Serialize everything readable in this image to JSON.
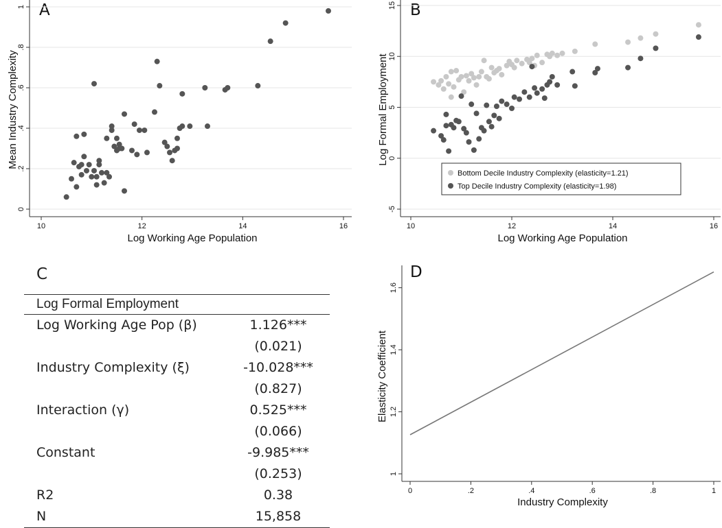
{
  "chart_data": [
    {
      "panel": "A",
      "type": "scatter",
      "xlabel": "Log Working Age Population",
      "ylabel": "Mean Industry Complexity",
      "xlim": [
        10,
        16
      ],
      "ylim": [
        0,
        1
      ],
      "xticks": [
        "10",
        "12",
        "14",
        "16"
      ],
      "yticks": [
        "0",
        ".2",
        ".4",
        ".6",
        ".8",
        "1"
      ],
      "grid": "horizontal",
      "color": "#555555",
      "points": [
        [
          10.5,
          0.06
        ],
        [
          10.6,
          0.15
        ],
        [
          10.65,
          0.23
        ],
        [
          10.7,
          0.11
        ],
        [
          10.7,
          0.36
        ],
        [
          10.75,
          0.21
        ],
        [
          10.8,
          0.17
        ],
        [
          10.8,
          0.22
        ],
        [
          10.85,
          0.37
        ],
        [
          10.85,
          0.26
        ],
        [
          10.9,
          0.19
        ],
        [
          10.95,
          0.22
        ],
        [
          11.0,
          0.16
        ],
        [
          11.05,
          0.19
        ],
        [
          11.05,
          0.62
        ],
        [
          11.1,
          0.16
        ],
        [
          11.1,
          0.12
        ],
        [
          11.15,
          0.24
        ],
        [
          11.15,
          0.22
        ],
        [
          11.2,
          0.18
        ],
        [
          11.25,
          0.13
        ],
        [
          11.3,
          0.18
        ],
        [
          11.35,
          0.16
        ],
        [
          11.3,
          0.35
        ],
        [
          11.4,
          0.41
        ],
        [
          11.4,
          0.39
        ],
        [
          11.45,
          0.31
        ],
        [
          11.5,
          0.29
        ],
        [
          11.55,
          0.3
        ],
        [
          11.5,
          0.35
        ],
        [
          11.55,
          0.32
        ],
        [
          11.6,
          0.3
        ],
        [
          11.65,
          0.47
        ],
        [
          11.65,
          0.09
        ],
        [
          11.8,
          0.29
        ],
        [
          11.85,
          0.42
        ],
        [
          11.9,
          0.27
        ],
        [
          11.95,
          0.39
        ],
        [
          12.05,
          0.39
        ],
        [
          12.1,
          0.28
        ],
        [
          12.25,
          0.48
        ],
        [
          12.3,
          0.73
        ],
        [
          12.35,
          0.61
        ],
        [
          12.45,
          0.33
        ],
        [
          12.5,
          0.31
        ],
        [
          12.55,
          0.28
        ],
        [
          12.6,
          0.24
        ],
        [
          12.65,
          0.29
        ],
        [
          12.7,
          0.35
        ],
        [
          12.7,
          0.3
        ],
        [
          12.75,
          0.4
        ],
        [
          12.8,
          0.41
        ],
        [
          12.8,
          0.57
        ],
        [
          12.95,
          0.41
        ],
        [
          13.25,
          0.6
        ],
        [
          13.3,
          0.41
        ],
        [
          13.65,
          0.59
        ],
        [
          13.7,
          0.6
        ],
        [
          14.3,
          0.61
        ],
        [
          14.55,
          0.83
        ],
        [
          14.85,
          0.92
        ],
        [
          15.7,
          0.98
        ]
      ]
    },
    {
      "panel": "B",
      "type": "scatter",
      "xlabel": "Log Working Age Population",
      "ylabel": "Log Formal Employment",
      "xlim": [
        10,
        16
      ],
      "ylim": [
        -5,
        15
      ],
      "xticks": [
        "10",
        "12",
        "14",
        "16"
      ],
      "yticks": [
        "-5",
        "0",
        "5",
        "10",
        "15"
      ],
      "grid": "horizontal",
      "legend_position": "bottom-right",
      "series": [
        {
          "name": "Bottom Decile Industry Complexity (elasticity=1.21)",
          "color": "#c8c8c8",
          "points": [
            [
              10.45,
              7.5
            ],
            [
              10.55,
              7.2
            ],
            [
              10.6,
              7.6
            ],
            [
              10.65,
              6.8
            ],
            [
              10.7,
              8.0
            ],
            [
              10.75,
              7.3
            ],
            [
              10.8,
              8.5
            ],
            [
              10.8,
              6.0
            ],
            [
              10.85,
              7.0
            ],
            [
              10.9,
              8.6
            ],
            [
              10.95,
              7.7
            ],
            [
              11.0,
              8.0
            ],
            [
              11.05,
              6.5
            ],
            [
              11.1,
              8.1
            ],
            [
              11.15,
              7.6
            ],
            [
              11.2,
              8.3
            ],
            [
              11.25,
              7.9
            ],
            [
              11.3,
              7.2
            ],
            [
              11.35,
              8.0
            ],
            [
              11.4,
              8.5
            ],
            [
              11.45,
              9.6
            ],
            [
              11.5,
              8.0
            ],
            [
              11.55,
              7.8
            ],
            [
              11.6,
              8.9
            ],
            [
              11.65,
              8.4
            ],
            [
              11.7,
              8.6
            ],
            [
              11.75,
              8.8
            ],
            [
              11.8,
              8.2
            ],
            [
              11.9,
              9.1
            ],
            [
              11.95,
              9.5
            ],
            [
              12.0,
              9.2
            ],
            [
              12.05,
              8.9
            ],
            [
              12.1,
              9.6
            ],
            [
              12.2,
              9.3
            ],
            [
              12.3,
              9.7
            ],
            [
              12.35,
              9.4
            ],
            [
              12.4,
              9.8
            ],
            [
              12.45,
              9.1
            ],
            [
              12.5,
              10.1
            ],
            [
              12.6,
              9.4
            ],
            [
              12.7,
              10.2
            ],
            [
              12.75,
              10.0
            ],
            [
              12.8,
              10.3
            ],
            [
              12.9,
              10.1
            ],
            [
              13.0,
              10.3
            ],
            [
              13.25,
              10.5
            ],
            [
              13.65,
              11.2
            ],
            [
              14.3,
              11.4
            ],
            [
              14.55,
              11.8
            ],
            [
              14.85,
              12.2
            ],
            [
              15.7,
              13.1
            ]
          ]
        },
        {
          "name": "Top Decile Industry Complexity (elasticity=1.98)",
          "color": "#555555",
          "points": [
            [
              10.45,
              2.7
            ],
            [
              10.6,
              2.2
            ],
            [
              10.65,
              1.8
            ],
            [
              10.7,
              4.3
            ],
            [
              10.7,
              3.2
            ],
            [
              10.75,
              0.7
            ],
            [
              10.8,
              3.3
            ],
            [
              10.85,
              3.0
            ],
            [
              10.9,
              3.7
            ],
            [
              10.95,
              3.6
            ],
            [
              11.0,
              6.1
            ],
            [
              11.05,
              2.9
            ],
            [
              11.1,
              2.5
            ],
            [
              11.15,
              1.6
            ],
            [
              11.2,
              5.3
            ],
            [
              11.25,
              0.8
            ],
            [
              11.3,
              4.4
            ],
            [
              11.35,
              1.9
            ],
            [
              11.4,
              3.0
            ],
            [
              11.45,
              2.7
            ],
            [
              11.5,
              5.2
            ],
            [
              11.55,
              3.6
            ],
            [
              11.6,
              3.1
            ],
            [
              11.65,
              4.2
            ],
            [
              11.7,
              5.1
            ],
            [
              11.75,
              3.9
            ],
            [
              11.8,
              5.6
            ],
            [
              11.9,
              5.3
            ],
            [
              12.0,
              4.9
            ],
            [
              12.05,
              6.0
            ],
            [
              12.15,
              5.8
            ],
            [
              12.25,
              6.5
            ],
            [
              12.35,
              6.0
            ],
            [
              12.4,
              9.0
            ],
            [
              12.45,
              6.9
            ],
            [
              12.5,
              6.4
            ],
            [
              12.6,
              6.8
            ],
            [
              12.65,
              5.9
            ],
            [
              12.7,
              7.2
            ],
            [
              12.75,
              7.5
            ],
            [
              12.8,
              8.0
            ],
            [
              12.9,
              7.2
            ],
            [
              13.2,
              8.5
            ],
            [
              13.25,
              7.1
            ],
            [
              13.65,
              8.4
            ],
            [
              13.7,
              8.8
            ],
            [
              14.3,
              8.9
            ],
            [
              14.55,
              9.8
            ],
            [
              14.85,
              10.8
            ],
            [
              15.7,
              11.9
            ]
          ]
        }
      ]
    },
    {
      "panel": "C",
      "type": "table",
      "header": "Log Formal Employment",
      "rows": [
        {
          "label": "Log Working Age Pop (β)",
          "value": "1.126***"
        },
        {
          "label": "",
          "value": "(0.021)"
        },
        {
          "label": "Industry Complexity (ξ)",
          "value": "-10.028***"
        },
        {
          "label": "",
          "value": "(0.827)"
        },
        {
          "label": "Interaction (γ)",
          "value": "0.525***"
        },
        {
          "label": "",
          "value": "(0.066)"
        },
        {
          "label": "Constant",
          "value": "-9.985***"
        },
        {
          "label": "",
          "value": "(0.253)"
        },
        {
          "label": "R2",
          "value": "0.38"
        },
        {
          "label": "N",
          "value": "15,858"
        }
      ]
    },
    {
      "panel": "D",
      "type": "line",
      "xlabel": "Industry Complexity",
      "ylabel": "Elasticity Coefficient",
      "xlim": [
        0,
        1
      ],
      "ylim": [
        1,
        1.65
      ],
      "xticks": [
        "0",
        ".2",
        ".4",
        ".6",
        ".8",
        "1"
      ],
      "yticks": [
        "1",
        "1.2",
        "1.4",
        "1.6"
      ],
      "grid": "none",
      "color": "#777777",
      "x": [
        0,
        1
      ],
      "y": [
        1.126,
        1.651
      ]
    }
  ]
}
